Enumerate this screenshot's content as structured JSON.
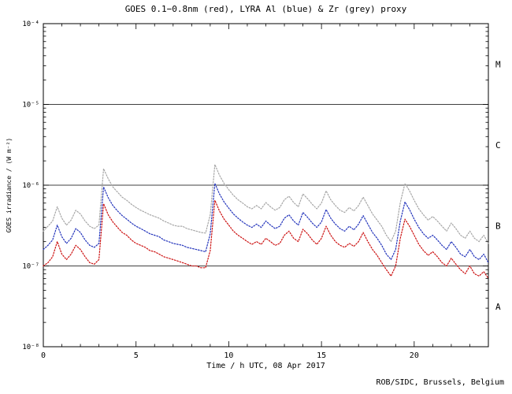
{
  "chart_data": {
    "type": "line",
    "title": "GOES 0.1−0.8nm (red), LYRA Al (blue) & Zr (grey) proxy",
    "xlabel": "Time / h UTC, 08 Apr 2017",
    "ylabel": "GOES irradiance / (W m⁻²)",
    "credit": "ROB/SIDC, Brussels, Belgium",
    "xlim": [
      0,
      24
    ],
    "ylim_exp": [
      -8,
      -4
    ],
    "xticks": [
      0,
      5,
      10,
      15,
      20
    ],
    "xtick_major": 5,
    "xtick_minor": 1,
    "yticks": [
      {
        "exp": -8,
        "label": "10⁻⁸"
      },
      {
        "exp": -7,
        "label": "10⁻⁷"
      },
      {
        "exp": -6,
        "label": "10⁻⁶"
      },
      {
        "exp": -5,
        "label": "10⁻⁵"
      },
      {
        "exp": -4,
        "label": "10⁻⁴"
      }
    ],
    "hlines": [
      1e-07,
      1e-06,
      1e-05
    ],
    "class_bands": [
      {
        "label": "A",
        "range": [
          1e-08,
          1e-07
        ]
      },
      {
        "label": "B",
        "range": [
          1e-07,
          1e-06
        ]
      },
      {
        "label": "C",
        "range": [
          1e-06,
          1e-05
        ]
      },
      {
        "label": "M",
        "range": [
          1e-05,
          0.0001
        ]
      }
    ],
    "grid": false,
    "x_unit": "h UTC",
    "values_unit": "1e-7 W m^-2",
    "y_scale": 1e-07,
    "x": [
      0,
      0.25,
      0.5,
      0.75,
      1,
      1.25,
      1.5,
      1.75,
      2,
      2.25,
      2.5,
      2.75,
      3,
      3.25,
      3.5,
      3.75,
      4,
      4.25,
      4.5,
      4.75,
      5,
      5.25,
      5.5,
      5.75,
      6,
      6.25,
      6.5,
      6.75,
      7,
      7.25,
      7.5,
      7.75,
      8,
      8.25,
      8.5,
      8.75,
      9,
      9.25,
      9.5,
      9.75,
      10,
      10.25,
      10.5,
      10.75,
      11,
      11.25,
      11.5,
      11.75,
      12,
      12.25,
      12.5,
      12.75,
      13,
      13.25,
      13.5,
      13.75,
      14,
      14.25,
      14.5,
      14.75,
      15,
      15.25,
      15.5,
      15.75,
      16,
      16.25,
      16.5,
      16.75,
      17,
      17.25,
      17.5,
      17.75,
      18,
      18.25,
      18.5,
      18.75,
      19,
      19.25,
      19.5,
      19.75,
      20,
      20.25,
      20.5,
      20.75,
      21,
      21.25,
      21.5,
      21.75,
      22,
      22.25,
      22.5,
      22.75,
      23,
      23.25,
      23.5,
      23.75,
      24
    ],
    "series": [
      {
        "key": "zr",
        "name": "LYRA Zr proxy",
        "color": "#a6a6a6",
        "values": [
          2.7,
          3.1,
          3.6,
          5.4,
          3.9,
          3.2,
          3.7,
          4.9,
          4.4,
          3.6,
          3.1,
          2.9,
          3.2,
          16,
          12,
          9.5,
          8.2,
          7.1,
          6.5,
          5.8,
          5.3,
          4.9,
          4.6,
          4.3,
          4.1,
          3.9,
          3.6,
          3.4,
          3.2,
          3.1,
          3.1,
          2.9,
          2.8,
          2.7,
          2.6,
          2.55,
          4.3,
          18,
          13.3,
          10.5,
          8.8,
          7.5,
          6.6,
          6.0,
          5.4,
          5.1,
          5.6,
          5.1,
          6.1,
          5.4,
          4.9,
          5.3,
          6.6,
          7.3,
          6.1,
          5.4,
          7.8,
          6.8,
          5.8,
          5.1,
          6.0,
          8.5,
          6.6,
          5.6,
          4.9,
          4.6,
          5.3,
          4.8,
          5.6,
          7.1,
          5.6,
          4.4,
          3.7,
          3.1,
          2.4,
          2.0,
          2.7,
          6.1,
          10.5,
          8.5,
          6.5,
          5.1,
          4.3,
          3.7,
          4.1,
          3.6,
          3.1,
          2.7,
          3.4,
          2.9,
          2.4,
          2.2,
          2.7,
          2.2,
          2.0,
          2.4,
          1.9
        ]
      },
      {
        "key": "al",
        "name": "LYRA Al proxy",
        "color": "#2233bb",
        "values": [
          1.6,
          1.8,
          2.1,
          3.2,
          2.3,
          1.9,
          2.2,
          2.9,
          2.6,
          2.1,
          1.8,
          1.7,
          1.9,
          9.5,
          7.0,
          5.6,
          4.8,
          4.2,
          3.8,
          3.4,
          3.1,
          2.9,
          2.7,
          2.5,
          2.4,
          2.3,
          2.1,
          2.0,
          1.9,
          1.85,
          1.8,
          1.7,
          1.65,
          1.6,
          1.55,
          1.5,
          2.5,
          10.5,
          7.8,
          6.2,
          5.2,
          4.4,
          3.9,
          3.5,
          3.2,
          3.0,
          3.3,
          3.0,
          3.6,
          3.2,
          2.9,
          3.1,
          3.9,
          4.3,
          3.6,
          3.2,
          4.6,
          4.0,
          3.4,
          3.0,
          3.5,
          5.0,
          3.9,
          3.3,
          2.9,
          2.7,
          3.1,
          2.8,
          3.3,
          4.2,
          3.3,
          2.6,
          2.2,
          1.8,
          1.4,
          1.2,
          1.6,
          3.6,
          6.2,
          5.0,
          3.8,
          3.0,
          2.5,
          2.2,
          2.4,
          2.1,
          1.8,
          1.6,
          2.0,
          1.7,
          1.4,
          1.3,
          1.6,
          1.3,
          1.2,
          1.4,
          1.1
        ]
      },
      {
        "key": "goes",
        "name": "GOES 0.1-0.8nm",
        "color": "#cc1111",
        "values": [
          1.0,
          1.1,
          1.3,
          2.0,
          1.4,
          1.2,
          1.4,
          1.8,
          1.6,
          1.3,
          1.1,
          1.05,
          1.2,
          5.9,
          4.3,
          3.5,
          3.0,
          2.6,
          2.4,
          2.1,
          1.9,
          1.8,
          1.7,
          1.55,
          1.5,
          1.4,
          1.3,
          1.25,
          1.2,
          1.15,
          1.1,
          1.05,
          1.0,
          1.0,
          0.95,
          0.95,
          1.55,
          6.5,
          4.8,
          3.8,
          3.2,
          2.7,
          2.4,
          2.2,
          2.0,
          1.85,
          2.0,
          1.85,
          2.2,
          2.0,
          1.8,
          1.9,
          2.4,
          2.7,
          2.2,
          2.0,
          2.85,
          2.5,
          2.1,
          1.85,
          2.2,
          3.1,
          2.4,
          2.0,
          1.8,
          1.7,
          1.9,
          1.75,
          2.0,
          2.6,
          2.0,
          1.6,
          1.35,
          1.1,
          0.9,
          0.75,
          1.0,
          2.2,
          3.8,
          3.1,
          2.4,
          1.85,
          1.55,
          1.35,
          1.5,
          1.3,
          1.1,
          1.0,
          1.25,
          1.05,
          0.9,
          0.8,
          1.0,
          0.8,
          0.75,
          0.85,
          0.7
        ]
      }
    ]
  }
}
